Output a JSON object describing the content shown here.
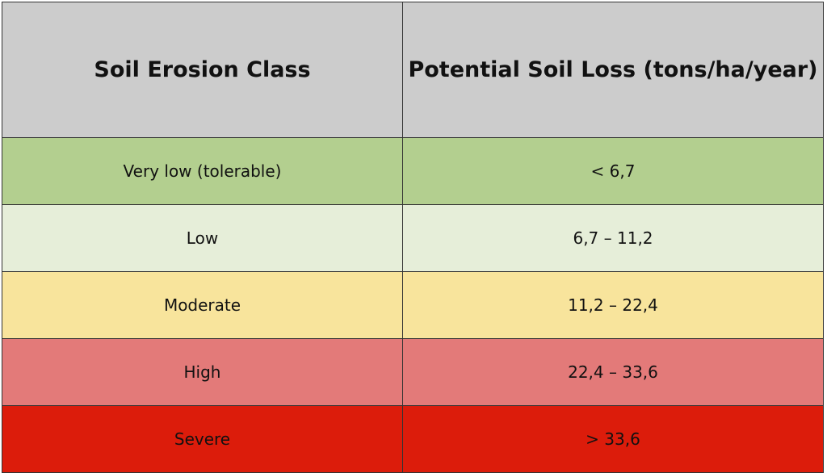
{
  "table": {
    "header": [
      "Soil Erosion Class",
      "Potential Soil Loss (tons/ha/year)"
    ],
    "rows": [
      [
        "Very low (tolerable)",
        "< 6,7"
      ],
      [
        "Low",
        "6,7 – 11,2"
      ],
      [
        "Moderate",
        "11,2 – 22,4"
      ],
      [
        "High",
        "22,4 – 33,6"
      ],
      [
        "Severe",
        "> 33,6"
      ]
    ],
    "row_colors": [
      "#b3cf8f",
      "#e6eed9",
      "#f8e49c",
      "#e37a79",
      "#dc1c0b"
    ],
    "header_color": "#cccccc"
  }
}
